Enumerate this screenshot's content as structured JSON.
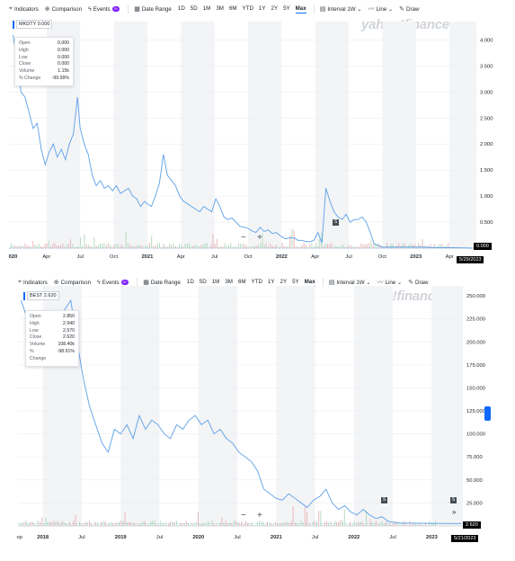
{
  "toolbar": {
    "indicators": "Indicators",
    "comparison": "Comparison",
    "events": "Events",
    "events_badge": "3+",
    "date_range": "Date Range",
    "ranges": [
      "1D",
      "5D",
      "1M",
      "3M",
      "6M",
      "YTD",
      "1Y",
      "2Y",
      "5Y",
      "Max"
    ],
    "selected_range": "Max",
    "interval": "Interval",
    "interval_value": "1W",
    "line": "Line",
    "draw": "Draw"
  },
  "logo": "yahoo!finance",
  "chart_data": [
    {
      "type": "line",
      "ticker": "MKDTY",
      "ticker_value": "0.000",
      "tooltip": {
        "rows": [
          {
            "label": "Open",
            "value": "0.000"
          },
          {
            "label": "High",
            "value": "0.000"
          },
          {
            "label": "Low",
            "value": "0.000"
          },
          {
            "label": "Close",
            "value": "0.000"
          },
          {
            "label": "Volume",
            "value": "1.15k"
          },
          {
            "label": "% Change",
            "value": "-99.99%"
          }
        ]
      },
      "y_ticks": [
        "4.000",
        "3.500",
        "3.000",
        "2.500",
        "2.000",
        "1.500",
        "1.000",
        "0.500"
      ],
      "ylim": [
        0,
        4.25
      ],
      "x_ticks": [
        {
          "label": "020",
          "t": 2020.0,
          "bold": true
        },
        {
          "label": "Apr",
          "t": 2020.25,
          "bold": false
        },
        {
          "label": "Jul",
          "t": 2020.5,
          "bold": false
        },
        {
          "label": "Oct",
          "t": 2020.75,
          "bold": false
        },
        {
          "label": "2021",
          "t": 2021.0,
          "bold": true
        },
        {
          "label": "Apr",
          "t": 2021.25,
          "bold": false
        },
        {
          "label": "Jul",
          "t": 2021.5,
          "bold": false
        },
        {
          "label": "Oct",
          "t": 2021.75,
          "bold": false
        },
        {
          "label": "2022",
          "t": 2022.0,
          "bold": true
        },
        {
          "label": "Apr",
          "t": 2022.25,
          "bold": false
        },
        {
          "label": "Jul",
          "t": 2022.5,
          "bold": false
        },
        {
          "label": "Oct",
          "t": 2022.75,
          "bold": false
        },
        {
          "label": "2023",
          "t": 2023.0,
          "bold": true
        },
        {
          "label": "Apr",
          "t": 2023.25,
          "bold": false
        }
      ],
      "xlim": [
        2019.97,
        2023.45
      ],
      "last_price": "0.000",
      "last_date": "5/29/2023",
      "split_marker": "S",
      "split_t": 2022.3,
      "series": [
        {
          "x": [
            2020.0,
            2020.03,
            2020.06,
            2020.09,
            2020.12,
            2020.15,
            2020.18,
            2020.21,
            2020.24,
            2020.27,
            2020.3,
            2020.33,
            2020.36,
            2020.39,
            2020.42,
            2020.45,
            2020.48,
            2020.5,
            2020.53,
            2020.56,
            2020.59,
            2020.62,
            2020.65,
            2020.68,
            2020.71,
            2020.74,
            2020.77,
            2020.8,
            2020.83,
            2020.86,
            2020.89,
            2020.92,
            2020.95,
            2020.98,
            2021.0,
            2021.03,
            2021.06,
            2021.09,
            2021.12,
            2021.15,
            2021.18,
            2021.21,
            2021.24,
            2021.27,
            2021.3,
            2021.33,
            2021.36,
            2021.39,
            2021.42,
            2021.45,
            2021.48,
            2021.51,
            2021.54,
            2021.57,
            2021.6,
            2021.63,
            2021.66,
            2021.69,
            2021.72,
            2021.75,
            2021.78,
            2021.81,
            2021.84,
            2021.87,
            2021.9,
            2021.93,
            2021.96,
            2022.0,
            2022.03,
            2022.06,
            2022.09,
            2022.12,
            2022.15,
            2022.18,
            2022.21,
            2022.24,
            2022.27,
            2022.3,
            2022.33,
            2022.36,
            2022.39,
            2022.42,
            2022.45,
            2022.48,
            2022.51,
            2022.54,
            2022.57,
            2022.6,
            2022.63,
            2022.66,
            2022.69,
            2022.75,
            2022.85,
            2022.95,
            2023.05,
            2023.15,
            2023.25,
            2023.35,
            2023.42
          ],
          "y": [
            4.1,
            3.6,
            3.0,
            2.9,
            2.6,
            2.3,
            2.4,
            1.9,
            1.6,
            1.85,
            2.0,
            1.75,
            1.9,
            1.7,
            2.0,
            2.2,
            2.9,
            2.3,
            2.0,
            1.8,
            1.4,
            1.2,
            1.3,
            1.15,
            1.2,
            1.1,
            1.2,
            1.05,
            1.1,
            1.15,
            1.0,
            0.95,
            0.8,
            0.9,
            0.85,
            0.8,
            1.0,
            1.25,
            1.8,
            1.4,
            1.3,
            1.2,
            1.0,
            0.9,
            0.85,
            0.8,
            0.75,
            0.7,
            0.8,
            0.75,
            0.7,
            0.95,
            0.8,
            0.6,
            0.55,
            0.58,
            0.5,
            0.42,
            0.4,
            0.38,
            0.33,
            0.3,
            0.4,
            0.32,
            0.35,
            0.28,
            0.3,
            0.22,
            0.18,
            0.2,
            0.2,
            0.15,
            0.15,
            0.13,
            0.12,
            0.15,
            0.3,
            0.1,
            1.15,
            0.9,
            0.7,
            0.6,
            0.55,
            0.65,
            0.5,
            0.55,
            0.55,
            0.6,
            0.5,
            0.3,
            0.08,
            0.02,
            0.02,
            0.02,
            0.02,
            0.01,
            0.01,
            0.005,
            0.0
          ]
        }
      ]
    },
    {
      "type": "line",
      "ticker": "BEST",
      "ticker_value": "2.620",
      "tooltip": {
        "rows": [
          {
            "label": "Open",
            "value": "2.850"
          },
          {
            "label": "High",
            "value": "2.940"
          },
          {
            "label": "Low",
            "value": "2.570"
          },
          {
            "label": "Close",
            "value": "2.620"
          },
          {
            "label": "Volume",
            "value": "108.40k"
          },
          {
            "label": "% Change",
            "value": "-98.91%"
          }
        ]
      },
      "y_ticks": [
        "250.000",
        "225.000",
        "200.000",
        "175.000",
        "150.000",
        "125.000",
        "100.000",
        "75.000",
        "50.000",
        "25.000"
      ],
      "ylim": [
        0,
        255
      ],
      "x_ticks": [
        {
          "label": "op",
          "t": 2017.7,
          "bold": false
        },
        {
          "label": "2018",
          "t": 2018.0,
          "bold": true
        },
        {
          "label": "Jul",
          "t": 2018.5,
          "bold": false
        },
        {
          "label": "2019",
          "t": 2019.0,
          "bold": true
        },
        {
          "label": "Jul",
          "t": 2019.5,
          "bold": false
        },
        {
          "label": "2020",
          "t": 2020.0,
          "bold": true
        },
        {
          "label": "Jul",
          "t": 2020.5,
          "bold": false
        },
        {
          "label": "2021",
          "t": 2021.0,
          "bold": true
        },
        {
          "label": "Jul",
          "t": 2021.5,
          "bold": false
        },
        {
          "label": "2022",
          "t": 2022.0,
          "bold": true
        },
        {
          "label": "Jul",
          "t": 2022.5,
          "bold": false
        },
        {
          "label": "2023",
          "t": 2023.0,
          "bold": true
        }
      ],
      "xlim": [
        2017.68,
        2023.4
      ],
      "last_price": "2.620",
      "last_date": "5/21/2023",
      "split_marker": "S",
      "series": [
        {
          "x": [
            2017.72,
            2017.8,
            2017.88,
            2017.96,
            2018.04,
            2018.12,
            2018.2,
            2018.28,
            2018.36,
            2018.44,
            2018.52,
            2018.6,
            2018.68,
            2018.76,
            2018.84,
            2018.92,
            2019.0,
            2019.08,
            2019.16,
            2019.24,
            2019.32,
            2019.4,
            2019.48,
            2019.56,
            2019.64,
            2019.72,
            2019.8,
            2019.88,
            2019.96,
            2020.04,
            2020.12,
            2020.2,
            2020.28,
            2020.36,
            2020.44,
            2020.52,
            2020.6,
            2020.68,
            2020.76,
            2020.84,
            2020.92,
            2021.0,
            2021.08,
            2021.16,
            2021.24,
            2021.32,
            2021.4,
            2021.48,
            2021.56,
            2021.64,
            2021.72,
            2021.8,
            2021.88,
            2021.96,
            2022.04,
            2022.12,
            2022.2,
            2022.28,
            2022.36,
            2022.44,
            2022.52,
            2022.6,
            2022.68,
            2022.76,
            2022.84,
            2022.92,
            2023.0,
            2023.1,
            2023.2,
            2023.3,
            2023.38
          ],
          "y": [
            245,
            225,
            195,
            230,
            185,
            200,
            215,
            235,
            245,
            200,
            160,
            130,
            110,
            90,
            80,
            105,
            100,
            110,
            95,
            120,
            105,
            115,
            110,
            100,
            95,
            110,
            105,
            115,
            120,
            110,
            115,
            100,
            105,
            95,
            90,
            80,
            75,
            70,
            60,
            40,
            35,
            30,
            28,
            35,
            30,
            25,
            20,
            28,
            32,
            40,
            25,
            18,
            22,
            15,
            12,
            18,
            12,
            8,
            10,
            5,
            4,
            3,
            3,
            3,
            3,
            2.8,
            2.7,
            2.7,
            2.65,
            2.62,
            2.62
          ]
        }
      ]
    }
  ]
}
